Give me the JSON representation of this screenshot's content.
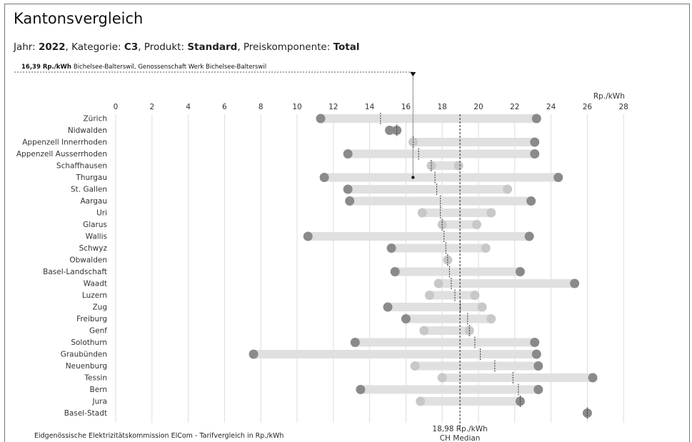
{
  "title": "Kantonsvergleich",
  "subtitle": {
    "jahr_label": "Jahr:",
    "jahr": "2022",
    "kategorie_label": ", Kategorie:",
    "kategorie": "C3",
    "produkt_label": ", Produkt:",
    "produkt": "Standard",
    "komponente_label": ", Preiskomponente:",
    "komponente": "Total"
  },
  "footer": "Eidgenössische Elektrizitätskommission ElCom - Tarifvergleich in Rp./kWh",
  "colors": {
    "bar": "#e0e0e0",
    "dot_dark": "#8a8a8a",
    "dot_light": "#c8c8c8",
    "median_line": "#222222",
    "grid": "#dddddd"
  },
  "chart_data": {
    "type": "range",
    "unit_label": "Rp./kWh",
    "xlim": [
      0,
      28
    ],
    "xticks": [
      0,
      2,
      4,
      6,
      8,
      10,
      12,
      14,
      16,
      18,
      20,
      22,
      24,
      26,
      28
    ],
    "median": 18.98,
    "median_label": "18,98 Rp./kWh",
    "median_sublabel": "CH Median",
    "marker": {
      "value": 16.39,
      "canton": "Thurgau",
      "label_value": "16,39 Rp./kWh",
      "label_text": "Bichelsee-Balterswil, Genossenschaft Werk Bichelsee-Balterswil"
    },
    "cantons": [
      {
        "name": "Zürich",
        "min": 11.3,
        "max": 23.2,
        "median": 14.6
      },
      {
        "name": "Nidwalden",
        "min": 15.1,
        "max": 15.5,
        "median": 15.5
      },
      {
        "name": "Appenzell Innerrhoden",
        "min": 16.4,
        "max": 23.1,
        "median": 16.4
      },
      {
        "name": "Appenzell Ausserrhoden",
        "min": 12.8,
        "max": 23.1,
        "median": 16.7
      },
      {
        "name": "Schaffhausen",
        "min": 17.4,
        "max": 18.9,
        "median": 17.4
      },
      {
        "name": "Thurgau",
        "min": 11.5,
        "max": 24.4,
        "median": 17.6
      },
      {
        "name": "St. Gallen",
        "min": 12.8,
        "max": 21.6,
        "median": 17.7
      },
      {
        "name": "Aargau",
        "min": 12.9,
        "max": 22.9,
        "median": 17.9
      },
      {
        "name": "Uri",
        "min": 16.9,
        "max": 20.7,
        "median": 17.9
      },
      {
        "name": "Glarus",
        "min": 18.0,
        "max": 19.9,
        "median": 18.0
      },
      {
        "name": "Wallis",
        "min": 10.6,
        "max": 22.8,
        "median": 18.1
      },
      {
        "name": "Schwyz",
        "min": 15.2,
        "max": 20.4,
        "median": 18.2
      },
      {
        "name": "Obwalden",
        "min": 18.3,
        "max": 18.3,
        "median": 18.3
      },
      {
        "name": "Basel-Landschaft",
        "min": 15.4,
        "max": 22.3,
        "median": 18.4
      },
      {
        "name": "Waadt",
        "min": 17.8,
        "max": 25.3,
        "median": 18.5
      },
      {
        "name": "Luzern",
        "min": 17.3,
        "max": 19.8,
        "median": 18.7
      },
      {
        "name": "Zug",
        "min": 15.0,
        "max": 20.2,
        "median": 19.0
      },
      {
        "name": "Freiburg",
        "min": 16.0,
        "max": 20.7,
        "median": 19.4
      },
      {
        "name": "Genf",
        "min": 17.0,
        "max": 19.5,
        "median": 19.5
      },
      {
        "name": "Solothurn",
        "min": 13.2,
        "max": 23.1,
        "median": 19.8
      },
      {
        "name": "Graubünden",
        "min": 7.6,
        "max": 23.2,
        "median": 20.1
      },
      {
        "name": "Neuenburg",
        "min": 16.5,
        "max": 23.3,
        "median": 20.9
      },
      {
        "name": "Tessin",
        "min": 18.0,
        "max": 26.3,
        "median": 21.9
      },
      {
        "name": "Bern",
        "min": 13.5,
        "max": 23.3,
        "median": 22.2
      },
      {
        "name": "Jura",
        "min": 16.8,
        "max": 22.3,
        "median": 22.3
      },
      {
        "name": "Basel-Stadt",
        "min": 26.0,
        "max": 26.0,
        "median": 26.0
      }
    ]
  }
}
